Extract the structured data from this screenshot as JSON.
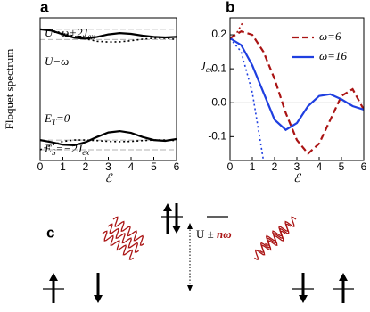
{
  "chart_data": [
    {
      "type": "line",
      "label": "a",
      "ylabel": "Floquet spectrum",
      "xlabel": "ℰ",
      "xlim": [
        0,
        6
      ],
      "xticks": [
        0,
        1,
        2,
        3,
        4,
        5,
        6
      ],
      "ylim": [
        -0.8,
        4.8
      ],
      "hlines": [
        4.35,
        3.95,
        0,
        -0.38
      ],
      "series": [
        {
          "color": "#000000",
          "style": "solid",
          "x": [
            0,
            0.5,
            1,
            1.5,
            2,
            2.5,
            3,
            3.5,
            4,
            4.5,
            5,
            5.5,
            6
          ],
          "values": [
            4.35,
            4.3,
            4.15,
            4.02,
            3.98,
            4.05,
            4.15,
            4.2,
            4.17,
            4.1,
            4.05,
            4.03,
            4.05
          ]
        },
        {
          "color": "#000000",
          "style": "dotted",
          "x": [
            0,
            0.5,
            1,
            1.5,
            2,
            2.5,
            3,
            3.5,
            4,
            4.5,
            5,
            5.5,
            6
          ],
          "values": [
            4.35,
            4.3,
            4.2,
            4.08,
            3.97,
            3.88,
            3.85,
            3.86,
            3.9,
            3.96,
            4.0,
            4.0,
            3.95
          ]
        },
        {
          "color": "#000000",
          "style": "solid",
          "x": [
            0,
            0.5,
            1,
            1.5,
            2,
            2.5,
            3,
            3.5,
            4,
            4.5,
            5,
            5.5,
            6
          ],
          "values": [
            0,
            -0.08,
            -0.18,
            -0.2,
            -0.08,
            0.12,
            0.3,
            0.35,
            0.28,
            0.12,
            0.0,
            -0.03,
            0.04
          ]
        },
        {
          "color": "#000000",
          "style": "dotted",
          "x": [
            0,
            0.5,
            1,
            1.5,
            2,
            2.5,
            3,
            3.5,
            4,
            4.5,
            5,
            5.5,
            6
          ],
          "values": [
            -0.38,
            -0.2,
            -0.05,
            0,
            0,
            -0.02,
            -0.05,
            -0.06,
            -0.05,
            -0.02,
            0,
            0,
            -0.02
          ]
        }
      ],
      "annotations": [
        {
          "parts": [
            {
              "text": "U−ω+2J"
            },
            {
              "sub": "ex"
            }
          ]
        },
        {
          "parts": [
            {
              "text": "U−ω"
            }
          ]
        },
        {
          "parts": [
            {
              "text": "E"
            },
            {
              "sub": "T"
            },
            {
              "text": "=0"
            }
          ]
        },
        {
          "parts": [
            {
              "text": "E"
            },
            {
              "sub": "S"
            },
            {
              "text": "=−2J"
            },
            {
              "sub": "ex"
            }
          ]
        }
      ]
    },
    {
      "type": "line",
      "label": "b",
      "ylabel": {
        "main": "J",
        "sub": "ex"
      },
      "xlabel": "ℰ",
      "xlim": [
        0,
        6
      ],
      "xticks": [
        0,
        1,
        2,
        3,
        4,
        5,
        6
      ],
      "ylim": [
        -0.17,
        0.25
      ],
      "yticks": [
        0.2,
        0.1,
        {
          "value": 0,
          "label": "0.0"
        },
        -0.1
      ],
      "hlines": [
        0
      ],
      "legend": "top-right",
      "series": [
        {
          "name": "ω=6",
          "color": "#aa1414",
          "style": "dashed",
          "x": [
            0,
            0.5,
            1,
            1.5,
            2,
            2.5,
            3,
            3.5,
            4,
            4.5,
            5,
            5.5,
            6
          ],
          "values": [
            0.19,
            0.21,
            0.2,
            0.15,
            0.07,
            -0.03,
            -0.11,
            -0.15,
            -0.12,
            -0.05,
            0.02,
            0.04,
            -0.02
          ]
        },
        {
          "name": "ω=16",
          "color": "#1f3fe0",
          "style": "solid",
          "x": [
            0,
            0.5,
            1,
            1.5,
            2,
            2.5,
            3,
            3.5,
            4,
            4.5,
            5,
            5.5,
            6
          ],
          "values": [
            0.19,
            0.17,
            0.11,
            0.03,
            -0.05,
            -0.08,
            -0.06,
            -0.01,
            0.02,
            0.025,
            0.01,
            -0.01,
            -0.02
          ]
        },
        {
          "color": "#1f3fe0",
          "style": "dotted",
          "x": [
            0,
            0.5,
            1,
            1.5
          ],
          "values": [
            0.19,
            0.15,
            0.03,
            -0.17
          ]
        },
        {
          "color": "#aa1414",
          "style": "dotted",
          "x": [
            0,
            0.3,
            0.6
          ],
          "values": [
            0.19,
            0.205,
            0.24
          ]
        }
      ]
    }
  ],
  "diagram": {
    "label": "c",
    "energy": [
      {
        "text": "U ± "
      },
      {
        "red": "nω"
      }
    ]
  }
}
